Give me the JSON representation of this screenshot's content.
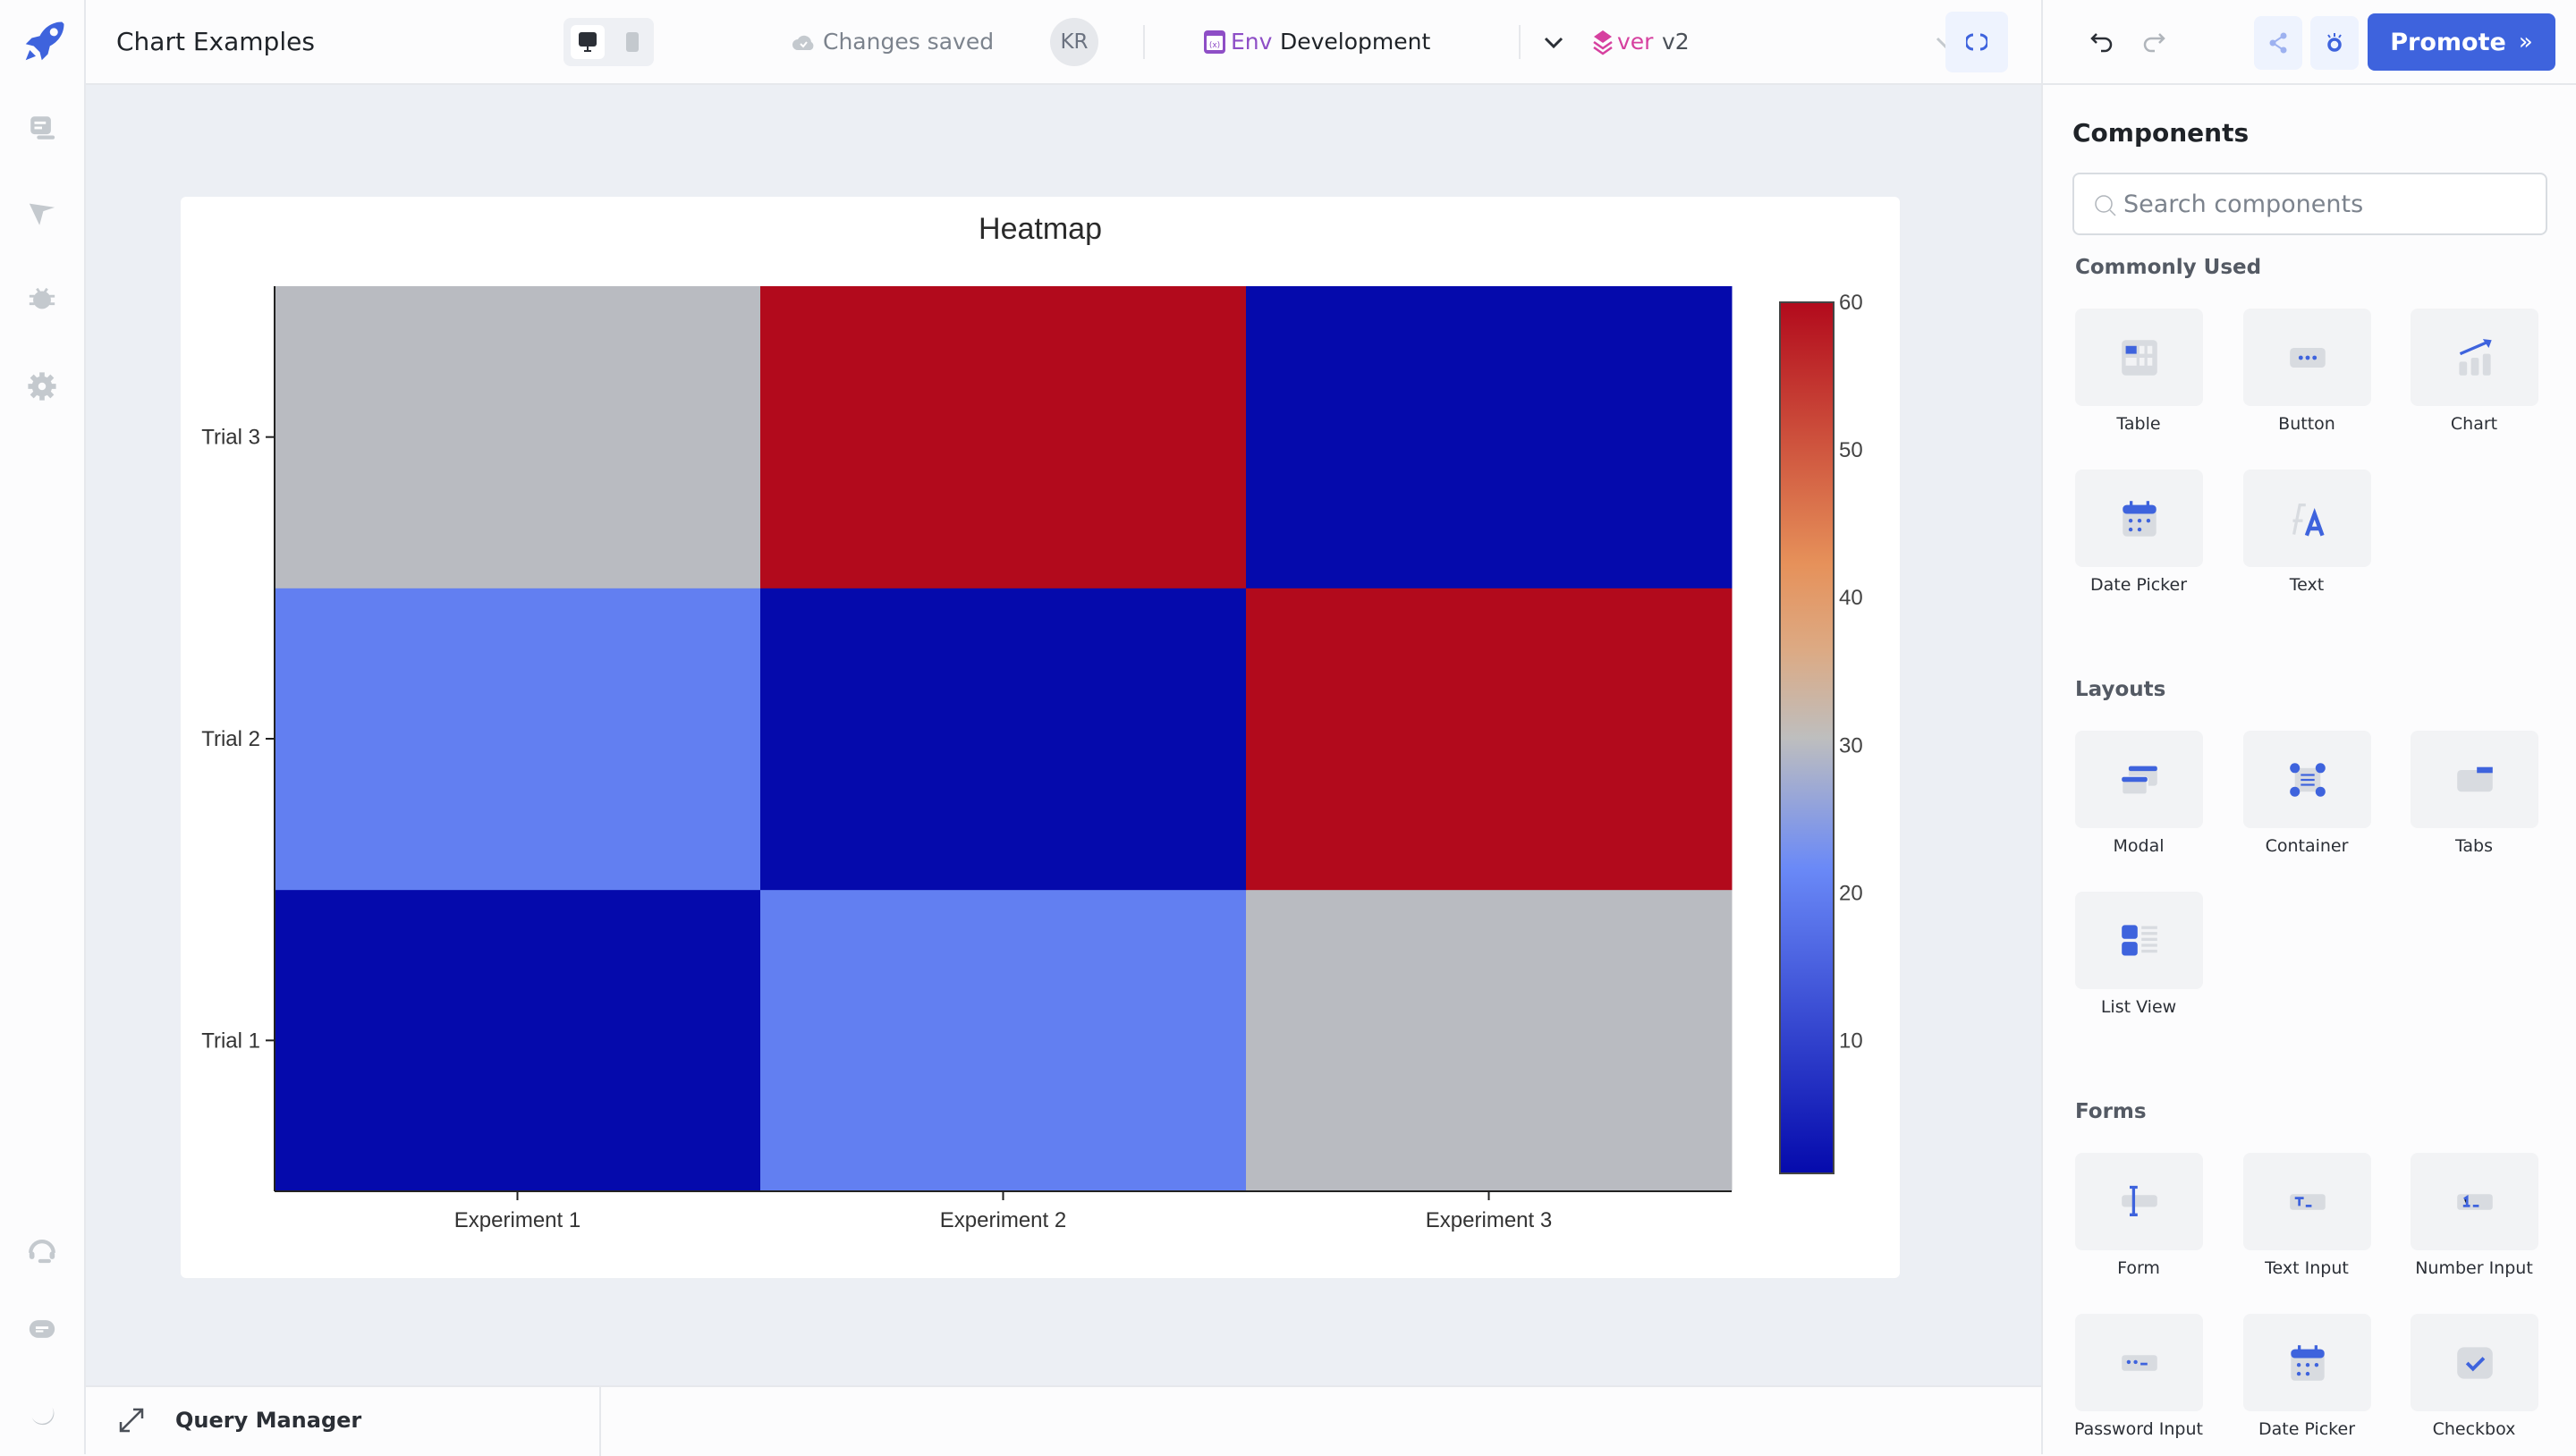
{
  "header": {
    "app_title": "Chart Examples",
    "save_status": "Changes saved",
    "avatar_initials": "KR",
    "env_label": "Env",
    "env_value": "Development",
    "version_label": "ver",
    "version_value": "v2",
    "promote_label": "Promote",
    "accent_color": "#3e63dd"
  },
  "sidebar": {
    "icons": [
      "comment-icon",
      "inspector-icon",
      "debugger-icon",
      "settings-icon",
      "support-icon",
      "chat-icon",
      "dark-mode-icon"
    ]
  },
  "query_manager": {
    "label": "Query Manager"
  },
  "chart_data": {
    "type": "heatmap",
    "title": "Heatmap",
    "x_categories": [
      "Experiment 1",
      "Experiment 2",
      "Experiment 3"
    ],
    "y_categories": [
      "Trial 1",
      "Trial 2",
      "Trial 3"
    ],
    "z": [
      [
        1,
        20,
        30
      ],
      [
        20,
        1,
        60
      ],
      [
        30,
        60,
        1
      ]
    ],
    "colorbar": {
      "min": 1,
      "max": 60,
      "ticks": [
        10,
        20,
        30,
        40,
        50,
        60
      ]
    },
    "colorscale": [
      [
        0,
        "#050aac"
      ],
      [
        0.35,
        "#6a89f7"
      ],
      [
        0.5,
        "#bebebe"
      ],
      [
        0.6,
        "#dcaa84"
      ],
      [
        0.7,
        "#e6915a"
      ],
      [
        1,
        "#b20a1c"
      ]
    ]
  },
  "components": {
    "title": "Components",
    "search_placeholder": "Search components",
    "sections": [
      {
        "title": "Commonly Used",
        "items": [
          "Table",
          "Button",
          "Chart",
          "Date Picker",
          "Text"
        ]
      },
      {
        "title": "Layouts",
        "items": [
          "Modal",
          "Container",
          "Tabs",
          "List View"
        ]
      },
      {
        "title": "Forms",
        "items": [
          "Form",
          "Text Input",
          "Number Input",
          "Password Input",
          "Date Picker",
          "Checkbox"
        ]
      }
    ]
  }
}
